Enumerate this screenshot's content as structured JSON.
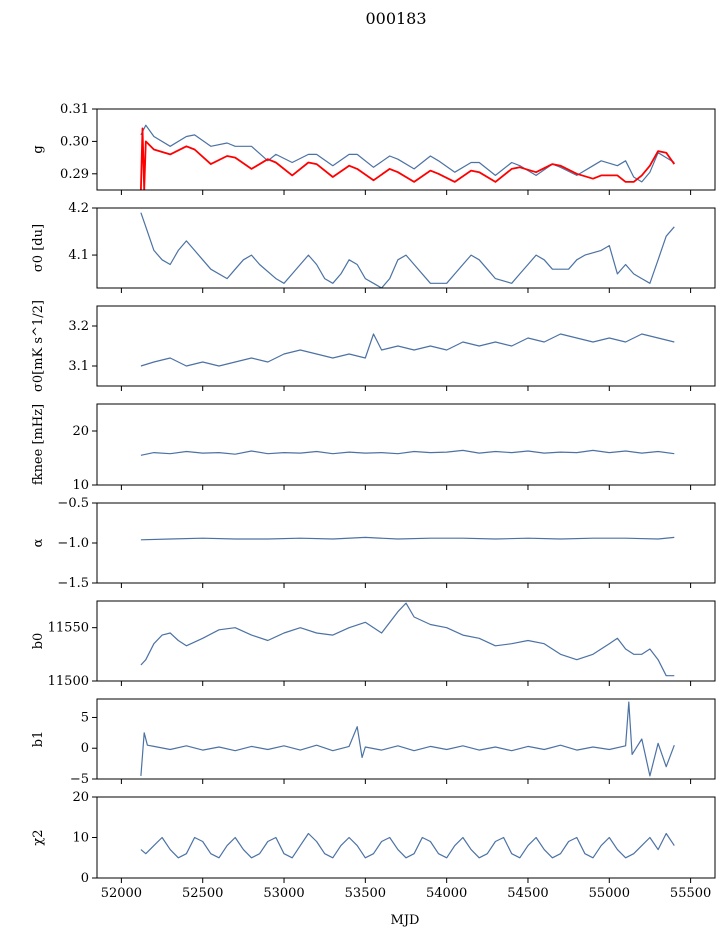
{
  "figure": {
    "title": "000183",
    "xlabel": "MJD"
  },
  "colors": {
    "series": "#4c72a4",
    "model": "#ff0000",
    "axis": "#000000"
  },
  "chart_data": [
    {
      "type": "line",
      "id": "g",
      "ylabel": "g",
      "xlim": [
        51850,
        55650
      ],
      "ylim": [
        0.285,
        0.31
      ],
      "yticks": [
        0.29,
        0.3,
        0.31
      ],
      "ytick_labels": [
        "0.29",
        "0.30",
        "0.31"
      ],
      "series": [
        {
          "color": "#4c72a4",
          "x": [
            52120,
            52150,
            52200,
            52300,
            52400,
            52450,
            52550,
            52650,
            52700,
            52800,
            52900,
            52950,
            53050,
            53150,
            53200,
            53300,
            53400,
            53450,
            53550,
            53650,
            53700,
            53800,
            53900,
            53950,
            54050,
            54150,
            54200,
            54300,
            54400,
            54450,
            54550,
            54650,
            54700,
            54800,
            54900,
            54950,
            55050,
            55100,
            55150,
            55200,
            55250,
            55300,
            55350,
            55400
          ],
          "y": [
            0.302,
            0.305,
            0.3015,
            0.2985,
            0.3015,
            0.302,
            0.2985,
            0.2995,
            0.2985,
            0.2985,
            0.294,
            0.296,
            0.2935,
            0.296,
            0.296,
            0.2925,
            0.296,
            0.296,
            0.292,
            0.2955,
            0.2945,
            0.2915,
            0.2955,
            0.294,
            0.2905,
            0.2935,
            0.2935,
            0.2895,
            0.2935,
            0.2925,
            0.2895,
            0.293,
            0.292,
            0.2895,
            0.2925,
            0.294,
            0.2925,
            0.294,
            0.289,
            0.2875,
            0.2905,
            0.2965,
            0.295,
            0.2935
          ]
        },
        {
          "color": "#ff0000",
          "x": [
            52120,
            52130,
            52140,
            52150,
            52200,
            52300,
            52400,
            52450,
            52550,
            52650,
            52700,
            52800,
            52900,
            52950,
            53050,
            53150,
            53200,
            53300,
            53400,
            53450,
            53550,
            53650,
            53700,
            53800,
            53900,
            53950,
            54050,
            54150,
            54200,
            54300,
            54400,
            54450,
            54550,
            54650,
            54700,
            54800,
            54900,
            54950,
            55050,
            55100,
            55150,
            55200,
            55250,
            55300,
            55350,
            55400
          ],
          "y": [
            0.285,
            0.304,
            0.285,
            0.3,
            0.2975,
            0.296,
            0.2985,
            0.2975,
            0.293,
            0.2955,
            0.295,
            0.2915,
            0.2945,
            0.2935,
            0.2895,
            0.2935,
            0.293,
            0.289,
            0.2925,
            0.2915,
            0.288,
            0.2915,
            0.2905,
            0.2875,
            0.291,
            0.29,
            0.2875,
            0.291,
            0.2905,
            0.2875,
            0.2915,
            0.292,
            0.2905,
            0.293,
            0.2925,
            0.29,
            0.2885,
            0.2895,
            0.2895,
            0.2875,
            0.2875,
            0.2895,
            0.2925,
            0.297,
            0.2965,
            0.293
          ]
        }
      ]
    },
    {
      "type": "line",
      "id": "sigma0-du",
      "ylabel": "σ0 [du]",
      "xlim": [
        51850,
        55650
      ],
      "ylim": [
        4.03,
        4.2
      ],
      "yticks": [
        4.1,
        4.2
      ],
      "ytick_labels": [
        "4.1",
        "4.2"
      ],
      "series": [
        {
          "color": "#4c72a4",
          "x": [
            52120,
            52150,
            52200,
            52250,
            52300,
            52350,
            52400,
            52450,
            52500,
            52550,
            52650,
            52700,
            52750,
            52800,
            52850,
            52950,
            53000,
            53050,
            53100,
            53150,
            53200,
            53250,
            53300,
            53350,
            53400,
            53450,
            53500,
            53550,
            53600,
            53650,
            53700,
            53750,
            53800,
            53900,
            54000,
            54050,
            54100,
            54150,
            54200,
            54250,
            54300,
            54400,
            54450,
            54500,
            54550,
            54600,
            54650,
            54750,
            54800,
            54850,
            54950,
            55000,
            55050,
            55100,
            55150,
            55200,
            55250,
            55300,
            55350,
            55400
          ],
          "y": [
            4.19,
            4.16,
            4.11,
            4.09,
            4.08,
            4.11,
            4.13,
            4.11,
            4.09,
            4.07,
            4.05,
            4.07,
            4.09,
            4.1,
            4.08,
            4.05,
            4.04,
            4.06,
            4.08,
            4.1,
            4.08,
            4.05,
            4.04,
            4.06,
            4.09,
            4.08,
            4.05,
            4.04,
            4.03,
            4.05,
            4.09,
            4.1,
            4.08,
            4.04,
            4.04,
            4.06,
            4.08,
            4.1,
            4.09,
            4.07,
            4.05,
            4.04,
            4.06,
            4.08,
            4.1,
            4.09,
            4.07,
            4.07,
            4.09,
            4.1,
            4.11,
            4.12,
            4.06,
            4.08,
            4.06,
            4.05,
            4.04,
            4.09,
            4.14,
            4.16
          ]
        }
      ]
    },
    {
      "type": "line",
      "id": "sigma0-mk",
      "ylabel": "σ0[mK s^1/2]",
      "xlim": [
        51850,
        55650
      ],
      "ylim": [
        3.05,
        3.25
      ],
      "yticks": [
        3.1,
        3.2
      ],
      "ytick_labels": [
        "3.1",
        "3.2"
      ],
      "series": [
        {
          "color": "#4c72a4",
          "x": [
            52120,
            52200,
            52300,
            52400,
            52500,
            52600,
            52700,
            52800,
            52900,
            53000,
            53100,
            53200,
            53300,
            53400,
            53500,
            53550,
            53600,
            53700,
            53800,
            53900,
            54000,
            54100,
            54200,
            54300,
            54400,
            54500,
            54600,
            54700,
            54800,
            54900,
            55000,
            55100,
            55200,
            55300,
            55400
          ],
          "y": [
            3.1,
            3.11,
            3.12,
            3.1,
            3.11,
            3.1,
            3.11,
            3.12,
            3.11,
            3.13,
            3.14,
            3.13,
            3.12,
            3.13,
            3.12,
            3.18,
            3.14,
            3.15,
            3.14,
            3.15,
            3.14,
            3.16,
            3.15,
            3.16,
            3.15,
            3.17,
            3.16,
            3.18,
            3.17,
            3.16,
            3.17,
            3.16,
            3.18,
            3.17,
            3.16
          ]
        }
      ]
    },
    {
      "type": "line",
      "id": "fknee",
      "ylabel": "fknee [mHz]",
      "xlim": [
        51850,
        55650
      ],
      "ylim": [
        10,
        25
      ],
      "yticks": [
        10,
        20
      ],
      "ytick_labels": [
        "10",
        "20"
      ],
      "series": [
        {
          "color": "#4c72a4",
          "x": [
            52120,
            52200,
            52300,
            52400,
            52500,
            52600,
            52700,
            52800,
            52900,
            53000,
            53100,
            53200,
            53300,
            53400,
            53500,
            53600,
            53700,
            53800,
            53900,
            54000,
            54100,
            54200,
            54300,
            54400,
            54500,
            54600,
            54700,
            54800,
            54900,
            55000,
            55100,
            55200,
            55300,
            55400
          ],
          "y": [
            15.5,
            16,
            15.8,
            16.2,
            15.9,
            16,
            15.7,
            16.3,
            15.8,
            16,
            15.9,
            16.2,
            15.8,
            16.1,
            15.9,
            16,
            15.8,
            16.2,
            16,
            16.1,
            16.4,
            15.9,
            16.2,
            16,
            16.3,
            15.9,
            16.1,
            16,
            16.4,
            16,
            16.3,
            15.9,
            16.2,
            15.8
          ]
        }
      ]
    },
    {
      "type": "line",
      "id": "alpha",
      "ylabel": "α",
      "xlim": [
        51850,
        55650
      ],
      "ylim": [
        -1.5,
        -0.5
      ],
      "yticks": [
        -1.5,
        -1.0,
        -0.5
      ],
      "ytick_labels": [
        "−1.5",
        "−1.0",
        "−0.5"
      ],
      "series": [
        {
          "color": "#4c72a4",
          "x": [
            52120,
            52300,
            52500,
            52700,
            52900,
            53100,
            53300,
            53500,
            53700,
            53900,
            54100,
            54300,
            54500,
            54700,
            54900,
            55100,
            55300,
            55400
          ],
          "y": [
            -0.96,
            -0.95,
            -0.94,
            -0.95,
            -0.95,
            -0.94,
            -0.95,
            -0.93,
            -0.95,
            -0.94,
            -0.94,
            -0.95,
            -0.94,
            -0.95,
            -0.94,
            -0.94,
            -0.95,
            -0.93
          ]
        }
      ]
    },
    {
      "type": "line",
      "id": "b0",
      "ylabel": "b0",
      "xlim": [
        51850,
        55650
      ],
      "ylim": [
        11500,
        11575
      ],
      "yticks": [
        11500,
        11550
      ],
      "ytick_labels": [
        "11500",
        "11550"
      ],
      "series": [
        {
          "color": "#4c72a4",
          "x": [
            52120,
            52150,
            52200,
            52250,
            52300,
            52350,
            52400,
            52500,
            52600,
            52700,
            52800,
            52900,
            53000,
            53100,
            53200,
            53300,
            53400,
            53500,
            53600,
            53700,
            53750,
            53800,
            53900,
            54000,
            54100,
            54200,
            54300,
            54400,
            54500,
            54600,
            54700,
            54800,
            54900,
            55000,
            55050,
            55100,
            55150,
            55200,
            55250,
            55300,
            55350,
            55400
          ],
          "y": [
            11515,
            11520,
            11535,
            11543,
            11545,
            11538,
            11533,
            11540,
            11548,
            11550,
            11543,
            11538,
            11545,
            11550,
            11545,
            11543,
            11550,
            11555,
            11545,
            11565,
            11573,
            11560,
            11553,
            11550,
            11543,
            11540,
            11533,
            11535,
            11538,
            11535,
            11525,
            11520,
            11525,
            11535,
            11540,
            11530,
            11525,
            11525,
            11530,
            11520,
            11505,
            11505
          ]
        }
      ]
    },
    {
      "type": "line",
      "id": "b1",
      "ylabel": "b1",
      "xlim": [
        51850,
        55650
      ],
      "ylim": [
        -5,
        8
      ],
      "yticks": [
        -5,
        0,
        5
      ],
      "ytick_labels": [
        "−5",
        "0",
        "5"
      ],
      "series": [
        {
          "color": "#4c72a4",
          "x": [
            52120,
            52140,
            52160,
            52200,
            52300,
            52400,
            52500,
            52600,
            52700,
            52800,
            52900,
            53000,
            53100,
            53200,
            53300,
            53400,
            53450,
            53480,
            53500,
            53600,
            53700,
            53800,
            53900,
            54000,
            54100,
            54200,
            54300,
            54400,
            54500,
            54600,
            54700,
            54800,
            54900,
            55000,
            55100,
            55120,
            55140,
            55200,
            55250,
            55300,
            55350,
            55400
          ],
          "y": [
            -4.5,
            2.5,
            0.5,
            0.3,
            -0.2,
            0.4,
            -0.3,
            0.2,
            -0.4,
            0.3,
            -0.2,
            0.4,
            -0.3,
            0.5,
            -0.4,
            0.3,
            3.5,
            -1.5,
            0.2,
            -0.3,
            0.4,
            -0.4,
            0.3,
            -0.2,
            0.4,
            -0.3,
            0.2,
            -0.4,
            0.3,
            -0.2,
            0.5,
            -0.3,
            0.2,
            -0.2,
            0.4,
            7.5,
            -1,
            1.5,
            -4.5,
            0.8,
            -3,
            0.5
          ]
        }
      ]
    },
    {
      "type": "line",
      "id": "chi2",
      "ylabel": "χ2",
      "xlim": [
        51850,
        55650
      ],
      "ylim": [
        0,
        20
      ],
      "yticks": [
        0,
        10,
        20
      ],
      "ytick_labels": [
        "0",
        "10",
        "20"
      ],
      "series": [
        {
          "color": "#4c72a4",
          "x": [
            52120,
            52150,
            52200,
            52250,
            52300,
            52350,
            52400,
            52450,
            52500,
            52550,
            52600,
            52650,
            52700,
            52750,
            52800,
            52850,
            52900,
            52950,
            53000,
            53050,
            53100,
            53150,
            53200,
            53250,
            53300,
            53350,
            53400,
            53450,
            53500,
            53550,
            53600,
            53650,
            53700,
            53750,
            53800,
            53850,
            53900,
            53950,
            54000,
            54050,
            54100,
            54150,
            54200,
            54250,
            54300,
            54350,
            54400,
            54450,
            54500,
            54550,
            54600,
            54650,
            54700,
            54750,
            54800,
            54850,
            54900,
            54950,
            55000,
            55050,
            55100,
            55150,
            55200,
            55250,
            55300,
            55350,
            55400
          ],
          "y": [
            7,
            6,
            8,
            10,
            7,
            5,
            6,
            10,
            9,
            6,
            5,
            8,
            10,
            7,
            5,
            6,
            9,
            10,
            6,
            5,
            8,
            11,
            9,
            6,
            5,
            8,
            10,
            8,
            5,
            6,
            9,
            10,
            7,
            5,
            6,
            10,
            9,
            6,
            5,
            8,
            10,
            7,
            5,
            6,
            9,
            10,
            6,
            5,
            8,
            10,
            7,
            5,
            6,
            9,
            10,
            6,
            5,
            8,
            10,
            7,
            5,
            6,
            8,
            10,
            7,
            11,
            8
          ]
        }
      ]
    }
  ],
  "xaxis": {
    "ticks": [
      52000,
      52500,
      53000,
      53500,
      54000,
      54500,
      55000,
      55500
    ],
    "tick_labels": [
      "52000",
      "52500",
      "53000",
      "53500",
      "54000",
      "54500",
      "55000",
      "55500"
    ]
  }
}
